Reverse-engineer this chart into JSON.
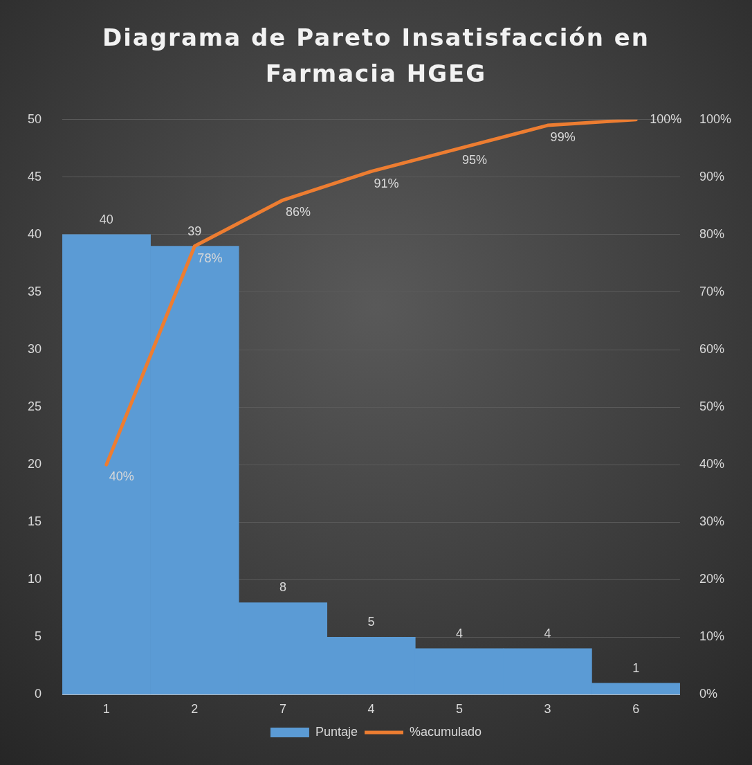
{
  "chart_data": {
    "type": "bar",
    "title": "Diagrama de Pareto Insatisfacción en Farmacia HGEG",
    "categories": [
      "1",
      "2",
      "7",
      "4",
      "5",
      "3",
      "6"
    ],
    "series": [
      {
        "name": "Puntaje",
        "color": "#5b9bd5",
        "values": [
          40,
          39,
          8,
          5,
          4,
          4,
          1
        ],
        "value_labels": [
          "40",
          "39",
          "8",
          "5",
          "4",
          "4",
          "1"
        ]
      },
      {
        "name": "%acumulado",
        "type": "line",
        "axis": "y2",
        "color": "#ed7d31",
        "values": [
          40,
          78,
          86,
          91,
          95,
          99,
          100
        ],
        "value_labels": [
          "40%",
          "78%",
          "86%",
          "91%",
          "95%",
          "99%",
          "100%"
        ]
      }
    ],
    "ylim": [
      0,
      50
    ],
    "yticks": [
      0,
      5,
      10,
      15,
      20,
      25,
      30,
      35,
      40,
      45,
      50
    ],
    "y2lim": [
      0,
      100
    ],
    "y2ticks": [
      {
        "value": 0,
        "label": "0%"
      },
      {
        "value": 10,
        "label": "10%"
      },
      {
        "value": 20,
        "label": "20%"
      },
      {
        "value": 30,
        "label": "30%"
      },
      {
        "value": 40,
        "label": "40%"
      },
      {
        "value": 50,
        "label": "50%"
      },
      {
        "value": 60,
        "label": "60%"
      },
      {
        "value": 70,
        "label": "70%"
      },
      {
        "value": 80,
        "label": "80%"
      },
      {
        "value": 90,
        "label": "90%"
      },
      {
        "value": 100,
        "label": "100%"
      }
    ],
    "grid": "y",
    "legend": "bottom",
    "marker": "none"
  }
}
